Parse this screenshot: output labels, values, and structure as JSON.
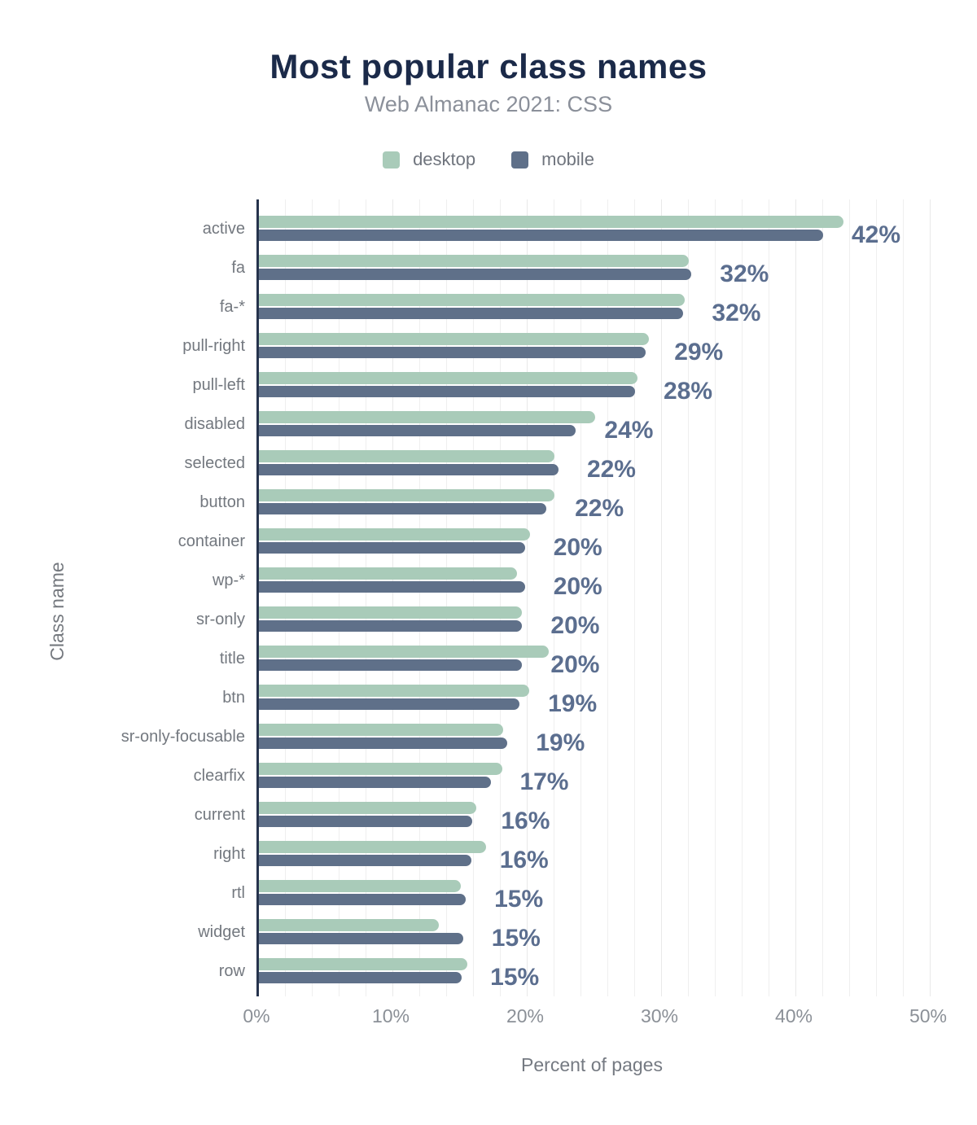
{
  "header": {
    "title": "Most popular class names",
    "subtitle": "Web Almanac 2021: CSS"
  },
  "colors": {
    "desktop": "#a9cbb9",
    "mobile": "#5f7089",
    "title_text": "#1b2a49",
    "value_label_text": "#5b6e8f",
    "axis_line": "#26334d"
  },
  "chart_data": {
    "type": "bar",
    "orientation": "horizontal",
    "title": "Most popular class names",
    "subtitle": "Web Almanac 2021: CSS",
    "xlabel": "Percent of pages",
    "ylabel": "Class name",
    "xlim": [
      0,
      52
    ],
    "x_ticks": [
      "0%",
      "10%",
      "20%",
      "30%",
      "40%",
      "50%"
    ],
    "x_tick_values": [
      0,
      10,
      20,
      30,
      40,
      50
    ],
    "grid": "vertical, minor every 2%, major every 10%",
    "legend_position": "top",
    "categories": [
      "active",
      "fa",
      "fa-*",
      "pull-right",
      "pull-left",
      "disabled",
      "selected",
      "button",
      "container",
      "wp-*",
      "sr-only",
      "title",
      "btn",
      "sr-only-focusable",
      "clearfix",
      "current",
      "right",
      "rtl",
      "widget",
      "row"
    ],
    "series": [
      {
        "name": "desktop",
        "color": "#a9cbb9",
        "values": [
          43.5,
          32.0,
          31.7,
          29.0,
          28.2,
          25.0,
          22.0,
          22.0,
          20.2,
          19.2,
          19.6,
          21.6,
          20.1,
          18.2,
          18.1,
          16.2,
          16.9,
          15.0,
          13.4,
          15.5
        ]
      },
      {
        "name": "mobile",
        "color": "#5f7089",
        "values": [
          42.0,
          32.2,
          31.6,
          28.8,
          28.0,
          23.6,
          22.3,
          21.4,
          19.8,
          19.8,
          19.6,
          19.6,
          19.4,
          18.5,
          17.3,
          15.9,
          15.8,
          15.4,
          15.2,
          15.1
        ]
      }
    ],
    "bar_labels": [
      "42%",
      "32%",
      "32%",
      "29%",
      "28%",
      "24%",
      "22%",
      "22%",
      "20%",
      "20%",
      "20%",
      "20%",
      "19%",
      "19%",
      "17%",
      "16%",
      "16%",
      "15%",
      "15%",
      "15%"
    ]
  }
}
